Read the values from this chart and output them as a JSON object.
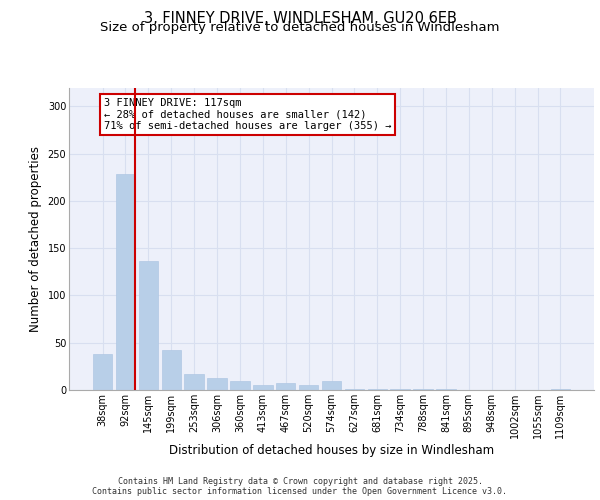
{
  "title_line1": "3, FINNEY DRIVE, WINDLESHAM, GU20 6EB",
  "title_line2": "Size of property relative to detached houses in Windlesham",
  "xlabel": "Distribution of detached houses by size in Windlesham",
  "ylabel": "Number of detached properties",
  "categories": [
    "38sqm",
    "92sqm",
    "145sqm",
    "199sqm",
    "253sqm",
    "306sqm",
    "360sqm",
    "413sqm",
    "467sqm",
    "520sqm",
    "574sqm",
    "627sqm",
    "681sqm",
    "734sqm",
    "788sqm",
    "841sqm",
    "895sqm",
    "948sqm",
    "1002sqm",
    "1055sqm",
    "1109sqm"
  ],
  "values": [
    38,
    229,
    136,
    42,
    17,
    13,
    9,
    5,
    7,
    5,
    10,
    1,
    1,
    1,
    1,
    1,
    0,
    0,
    0,
    0,
    1
  ],
  "bar_color": "#b8cfe8",
  "bar_edge_color": "#b0c8e4",
  "grid_color": "#d8dff0",
  "bg_color": "#edf0fa",
  "vline_color": "#cc0000",
  "vline_x": 1.42,
  "annotation_text": "3 FINNEY DRIVE: 117sqm\n← 28% of detached houses are smaller (142)\n71% of semi-detached houses are larger (355) →",
  "annotation_box_facecolor": "#ffffff",
  "annotation_box_edgecolor": "#cc0000",
  "footer_text": "Contains HM Land Registry data © Crown copyright and database right 2025.\nContains public sector information licensed under the Open Government Licence v3.0.",
  "ylim": [
    0,
    320
  ],
  "yticks": [
    0,
    50,
    100,
    150,
    200,
    250,
    300
  ],
  "title_fontsize": 10.5,
  "subtitle_fontsize": 9.5,
  "tick_fontsize": 7,
  "axis_label_fontsize": 8.5,
  "annot_fontsize": 7.5,
  "footer_fontsize": 6.0
}
